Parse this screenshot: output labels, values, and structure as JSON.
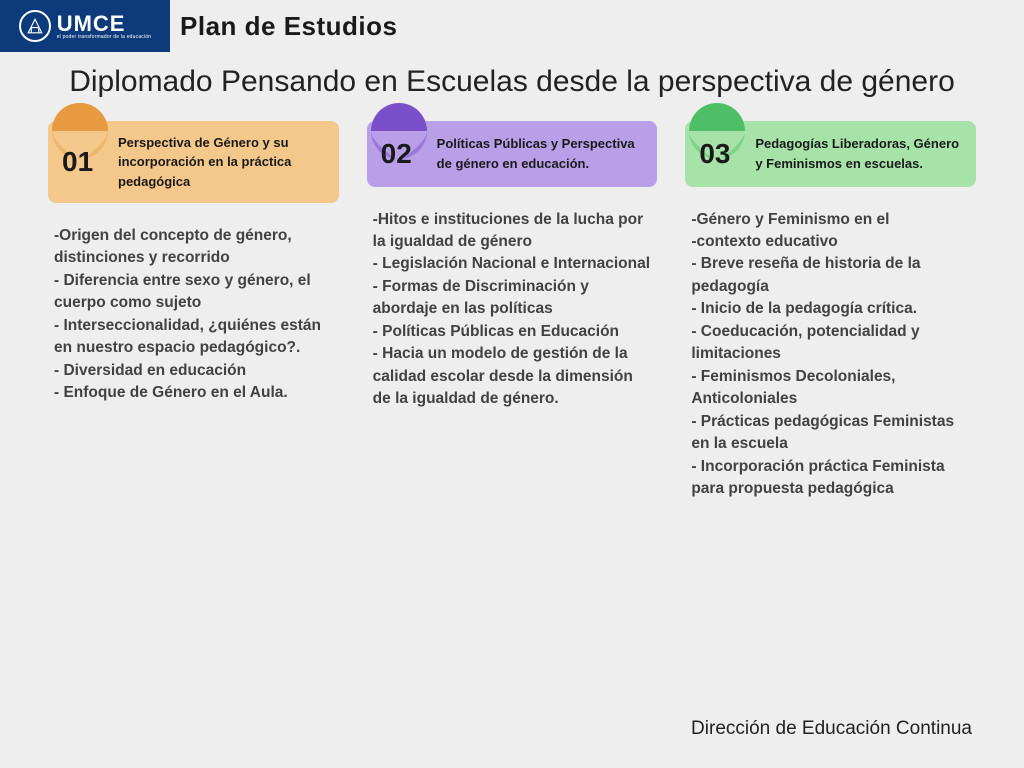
{
  "header": {
    "logo_text": "UMCE",
    "logo_subtext": "el poder transformador de la educación",
    "plan_label": "Plan de Estudios"
  },
  "title": "Diplomado Pensando en Escuelas desde la perspectiva de género",
  "modules": [
    {
      "num": "01",
      "title": "Perspectiva de Género y su incorporación en la práctica pedagógica",
      "header_bg": "#f4c78a",
      "pin_top": "#e79a3f",
      "pin_bottom": "#f0b56a",
      "items": [
        "-Origen del concepto de género, distinciones y recorrido",
        "- Diferencia entre sexo y género, el cuerpo como sujeto",
        "- Interseccionalidad, ¿quiénes están en nuestro espacio pedagógico?.",
        "- Diversidad en educación",
        "- Enfoque de Género en el Aula."
      ]
    },
    {
      "num": "02",
      "title": "Políticas Públicas y Perspectiva de género en educación.",
      "header_bg": "#b99ee8",
      "pin_top": "#7a4fc9",
      "pin_bottom": "#9b77db",
      "items": [
        "-Hitos e instituciones de la lucha por la igualdad de género",
        "- Legislación Nacional e Internacional",
        "- Formas de Discriminación y abordaje en las políticas",
        "- Políticas Públicas en Educación",
        "- Hacia un modelo de gestión de la calidad escolar desde la dimensión de la igualdad de género."
      ]
    },
    {
      "num": "03",
      "title": "Pedagogías Liberadoras, Género y Feminismos en escuelas.",
      "header_bg": "#a7e3a9",
      "pin_top": "#4fbf67",
      "pin_bottom": "#7fd38b",
      "items": [
        "-Género y Feminismo en el",
        "-contexto educativo",
        "- Breve reseña de historia de la pedagogía",
        "- Inicio de la pedagogía crítica.",
        "- Coeducación, potencialidad y limitaciones",
        "- Feminismos Decoloniales, Anticoloniales",
        "- Prácticas pedagógicas Feministas en la escuela",
        "- Incorporación práctica Feminista para propuesta pedagógica"
      ]
    }
  ],
  "footer": "Dirección de Educación Continua",
  "colors": {
    "page_bg": "#eeeeee",
    "logo_bg": "#0c3a7a",
    "body_text": "#424242",
    "title_text": "#222222"
  }
}
